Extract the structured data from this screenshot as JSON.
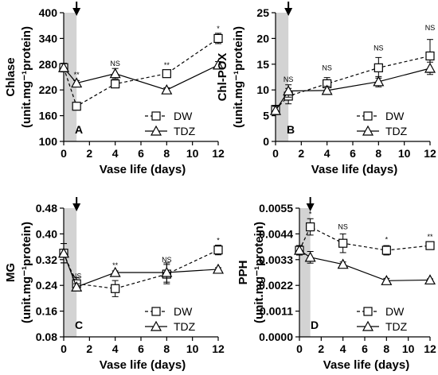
{
  "chart_data": [
    {
      "type": "line",
      "panel": "A",
      "xlabel": "Vase life (days)",
      "ylabel_line1": "Chlase",
      "ylabel_line2": "(unit.mg⁻¹protein)",
      "xlim": [
        0,
        12
      ],
      "ylim": [
        100,
        400
      ],
      "xticks": [
        0,
        2,
        4,
        6,
        8,
        10,
        12
      ],
      "xtick_labels": [
        "0",
        "2",
        "4",
        "6",
        "8",
        "10",
        "12"
      ],
      "yticks": [
        100,
        160,
        220,
        280,
        340,
        400
      ],
      "ytick_labels": [
        "100",
        "160",
        "220",
        "280",
        "340",
        "400"
      ],
      "shaded_x": [
        0,
        1
      ],
      "arrow_x": 1,
      "legend_position": "bottom-right",
      "x": [
        0,
        1,
        4,
        8,
        12
      ],
      "series": [
        {
          "name": "DW",
          "marker": "square",
          "dash": "dashed",
          "values": [
            272,
            182,
            234,
            258,
            340
          ],
          "errors": [
            10,
            8,
            8,
            8,
            12
          ]
        },
        {
          "name": "TDZ",
          "marker": "triangle",
          "dash": "solid",
          "values": [
            272,
            236,
            258,
            220,
            278
          ],
          "errors": [
            10,
            6,
            12,
            5,
            8
          ]
        }
      ],
      "annotations": [
        {
          "x": 1,
          "text": "**",
          "y": 250
        },
        {
          "x": 4,
          "text": "NS",
          "y": 276
        },
        {
          "x": 8,
          "text": "**",
          "y": 272
        },
        {
          "x": 12,
          "text": "*",
          "y": 357
        }
      ]
    },
    {
      "type": "line",
      "panel": "B",
      "xlabel": "Vase life (days)",
      "ylabel_line1": "Chl-POX",
      "ylabel_line2": "(unit.mg⁻¹protein)",
      "xlim": [
        0,
        12
      ],
      "ylim": [
        0,
        25
      ],
      "xticks": [
        0,
        2,
        4,
        6,
        8,
        10,
        12
      ],
      "xtick_labels": [
        "0",
        "2",
        "4",
        "6",
        "8",
        "10",
        "12"
      ],
      "yticks": [
        0,
        5,
        10,
        15,
        20,
        25
      ],
      "ytick_labels": [
        "0",
        "5",
        "10",
        "15",
        "20",
        "25"
      ],
      "shaded_x": [
        0,
        1
      ],
      "arrow_x": 1,
      "legend_position": "bottom-right",
      "x": [
        0,
        1,
        4,
        8,
        12
      ],
      "series": [
        {
          "name": "DW",
          "marker": "square",
          "dash": "dashed",
          "values": [
            6.2,
            8.8,
            11.2,
            14.3,
            16.6
          ],
          "errors": [
            0.8,
            1.5,
            1.2,
            2.0,
            3.2
          ]
        },
        {
          "name": "TDZ",
          "marker": "triangle",
          "dash": "solid",
          "values": [
            6.0,
            9.8,
            9.9,
            11.6,
            14.2
          ],
          "errors": [
            0.8,
            1.2,
            0.8,
            1.0,
            1.2
          ]
        }
      ],
      "annotations": [
        {
          "x": 1,
          "text": "NS",
          "y": 11.6
        },
        {
          "x": 4,
          "text": "NS",
          "y": 13.8
        },
        {
          "x": 8,
          "text": "NS",
          "y": 17.7
        },
        {
          "x": 12,
          "text": "NS",
          "y": 21.6
        }
      ]
    },
    {
      "type": "line",
      "panel": "C",
      "xlabel": "Vase life (days)",
      "ylabel_line1": "MG",
      "ylabel_line2": "(unit.mg⁻¹protein)",
      "xlim": [
        0,
        12
      ],
      "ylim": [
        0.08,
        0.48
      ],
      "xticks": [
        0,
        2,
        4,
        6,
        8,
        10,
        12
      ],
      "xtick_labels": [
        "0",
        "2",
        "4",
        "6",
        "8",
        "10",
        "12"
      ],
      "yticks": [
        0.08,
        0.16,
        0.24,
        0.32,
        0.4,
        0.48
      ],
      "ytick_labels": [
        "0.08",
        "0.16",
        "0.24",
        "0.32",
        "0.40",
        "0.48"
      ],
      "shaded_x": [
        0,
        1
      ],
      "arrow_x": 1,
      "legend_position": "bottom-right",
      "x": [
        0,
        1,
        4,
        8,
        12
      ],
      "series": [
        {
          "name": "DW",
          "marker": "square",
          "dash": "dashed",
          "values": [
            0.34,
            0.245,
            0.23,
            0.275,
            0.35
          ],
          "errors": [
            0.03,
            0.02,
            0.025,
            0.03,
            0.015
          ]
        },
        {
          "name": "TDZ",
          "marker": "triangle",
          "dash": "solid",
          "values": [
            0.34,
            0.235,
            0.28,
            0.28,
            0.29
          ],
          "errors": [
            0.03,
            0.01,
            0.005,
            0.03,
            0.005
          ]
        }
      ],
      "annotations": [
        {
          "x": 1,
          "text": "NS",
          "y": 0.262
        },
        {
          "x": 4,
          "text": "**",
          "y": 0.295
        },
        {
          "x": 8,
          "text": "NS",
          "y": 0.312
        },
        {
          "x": 12,
          "text": "*",
          "y": 0.372
        }
      ]
    },
    {
      "type": "line",
      "panel": "D",
      "xlabel": "Vase life (days)",
      "ylabel_line1": "PPH",
      "ylabel_line2": "(unit.mg⁻¹protein)",
      "xlim": [
        0,
        12
      ],
      "ylim": [
        0,
        0.0055
      ],
      "xticks": [
        0,
        2,
        4,
        6,
        8,
        10,
        12
      ],
      "xtick_labels": [
        "0",
        "2",
        "4",
        "6",
        "8",
        "10",
        "12"
      ],
      "yticks": [
        0,
        0.0011,
        0.0022,
        0.0033,
        0.0044,
        0.0055
      ],
      "ytick_labels": [
        "0.0000",
        "0.0011",
        "0.0022",
        "0.0033",
        "0.0044",
        "0.0055"
      ],
      "shaded_x": [
        0,
        1
      ],
      "arrow_x": 1,
      "legend_position": "bottom-right",
      "x": [
        0,
        1,
        4,
        8,
        12
      ],
      "series": [
        {
          "name": "DW",
          "marker": "square",
          "dash": "dashed",
          "values": [
            0.0037,
            0.0047,
            0.004,
            0.0037,
            0.0039
          ],
          "errors": [
            0.0002,
            0.00035,
            0.0004,
            0.0002,
            0.00012
          ]
        },
        {
          "name": "TDZ",
          "marker": "triangle",
          "dash": "solid",
          "values": [
            0.0037,
            0.0034,
            0.0031,
            0.0024,
            0.00243
          ],
          "errors": [
            0.0002,
            0.00025,
            0.0001,
            0.0001,
            5e-05
          ]
        }
      ],
      "annotations": [
        {
          "x": 1,
          "text": "*",
          "y": 0.00515
        },
        {
          "x": 4,
          "text": "NS",
          "y": 0.0046
        },
        {
          "x": 8,
          "text": "*",
          "y": 0.00405
        },
        {
          "x": 12,
          "text": "**",
          "y": 0.00418
        }
      ]
    }
  ]
}
